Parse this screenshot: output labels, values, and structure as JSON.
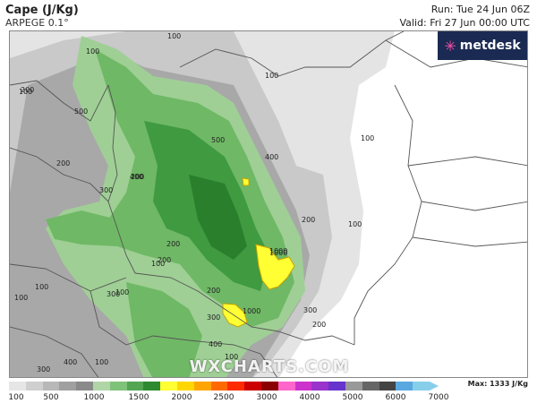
{
  "header": {
    "title": "Cape (J/Kg)",
    "model": "ARPEGE 0.1°",
    "run": "Run: Tue 24 Jun 06Z",
    "valid": "Valid: Fri 27 Jun 00:00 UTC"
  },
  "logo": {
    "text": "metdesk",
    "icon": "metdesk-star-icon"
  },
  "watermark": "WXCHARTS.COM",
  "legend": {
    "ticks": [
      "100",
      "500",
      "1000",
      "1500",
      "2000",
      "2500",
      "3000",
      "4000",
      "5000",
      "6000",
      "7000"
    ],
    "max": "Max: 1333 J/Kg",
    "colors": [
      "#e6e6e6",
      "#cfcfcf",
      "#b8b8b8",
      "#a0a0a0",
      "#8a8a8a",
      "#b0d6a8",
      "#7fc27a",
      "#53a552",
      "#2e8a30",
      "#ffff33",
      "#ffd700",
      "#ffa500",
      "#ff6a00",
      "#ff2b00",
      "#cc0000",
      "#8b0000",
      "#ff66cc",
      "#cc33cc",
      "#9933cc",
      "#6633cc",
      "#999999",
      "#666666",
      "#444444",
      "#5aa8e0",
      "#87ceeb"
    ]
  },
  "contour_labels": [
    "100",
    "100",
    "100",
    "100",
    "100",
    "100",
    "100",
    "100",
    "100",
    "100",
    "100",
    "100",
    "200",
    "200",
    "200",
    "200",
    "200",
    "200",
    "200",
    "200",
    "300",
    "300",
    "300",
    "300",
    "300",
    "400",
    "400",
    "400",
    "400",
    "500",
    "500",
    "1000",
    "1000",
    "1000"
  ]
}
